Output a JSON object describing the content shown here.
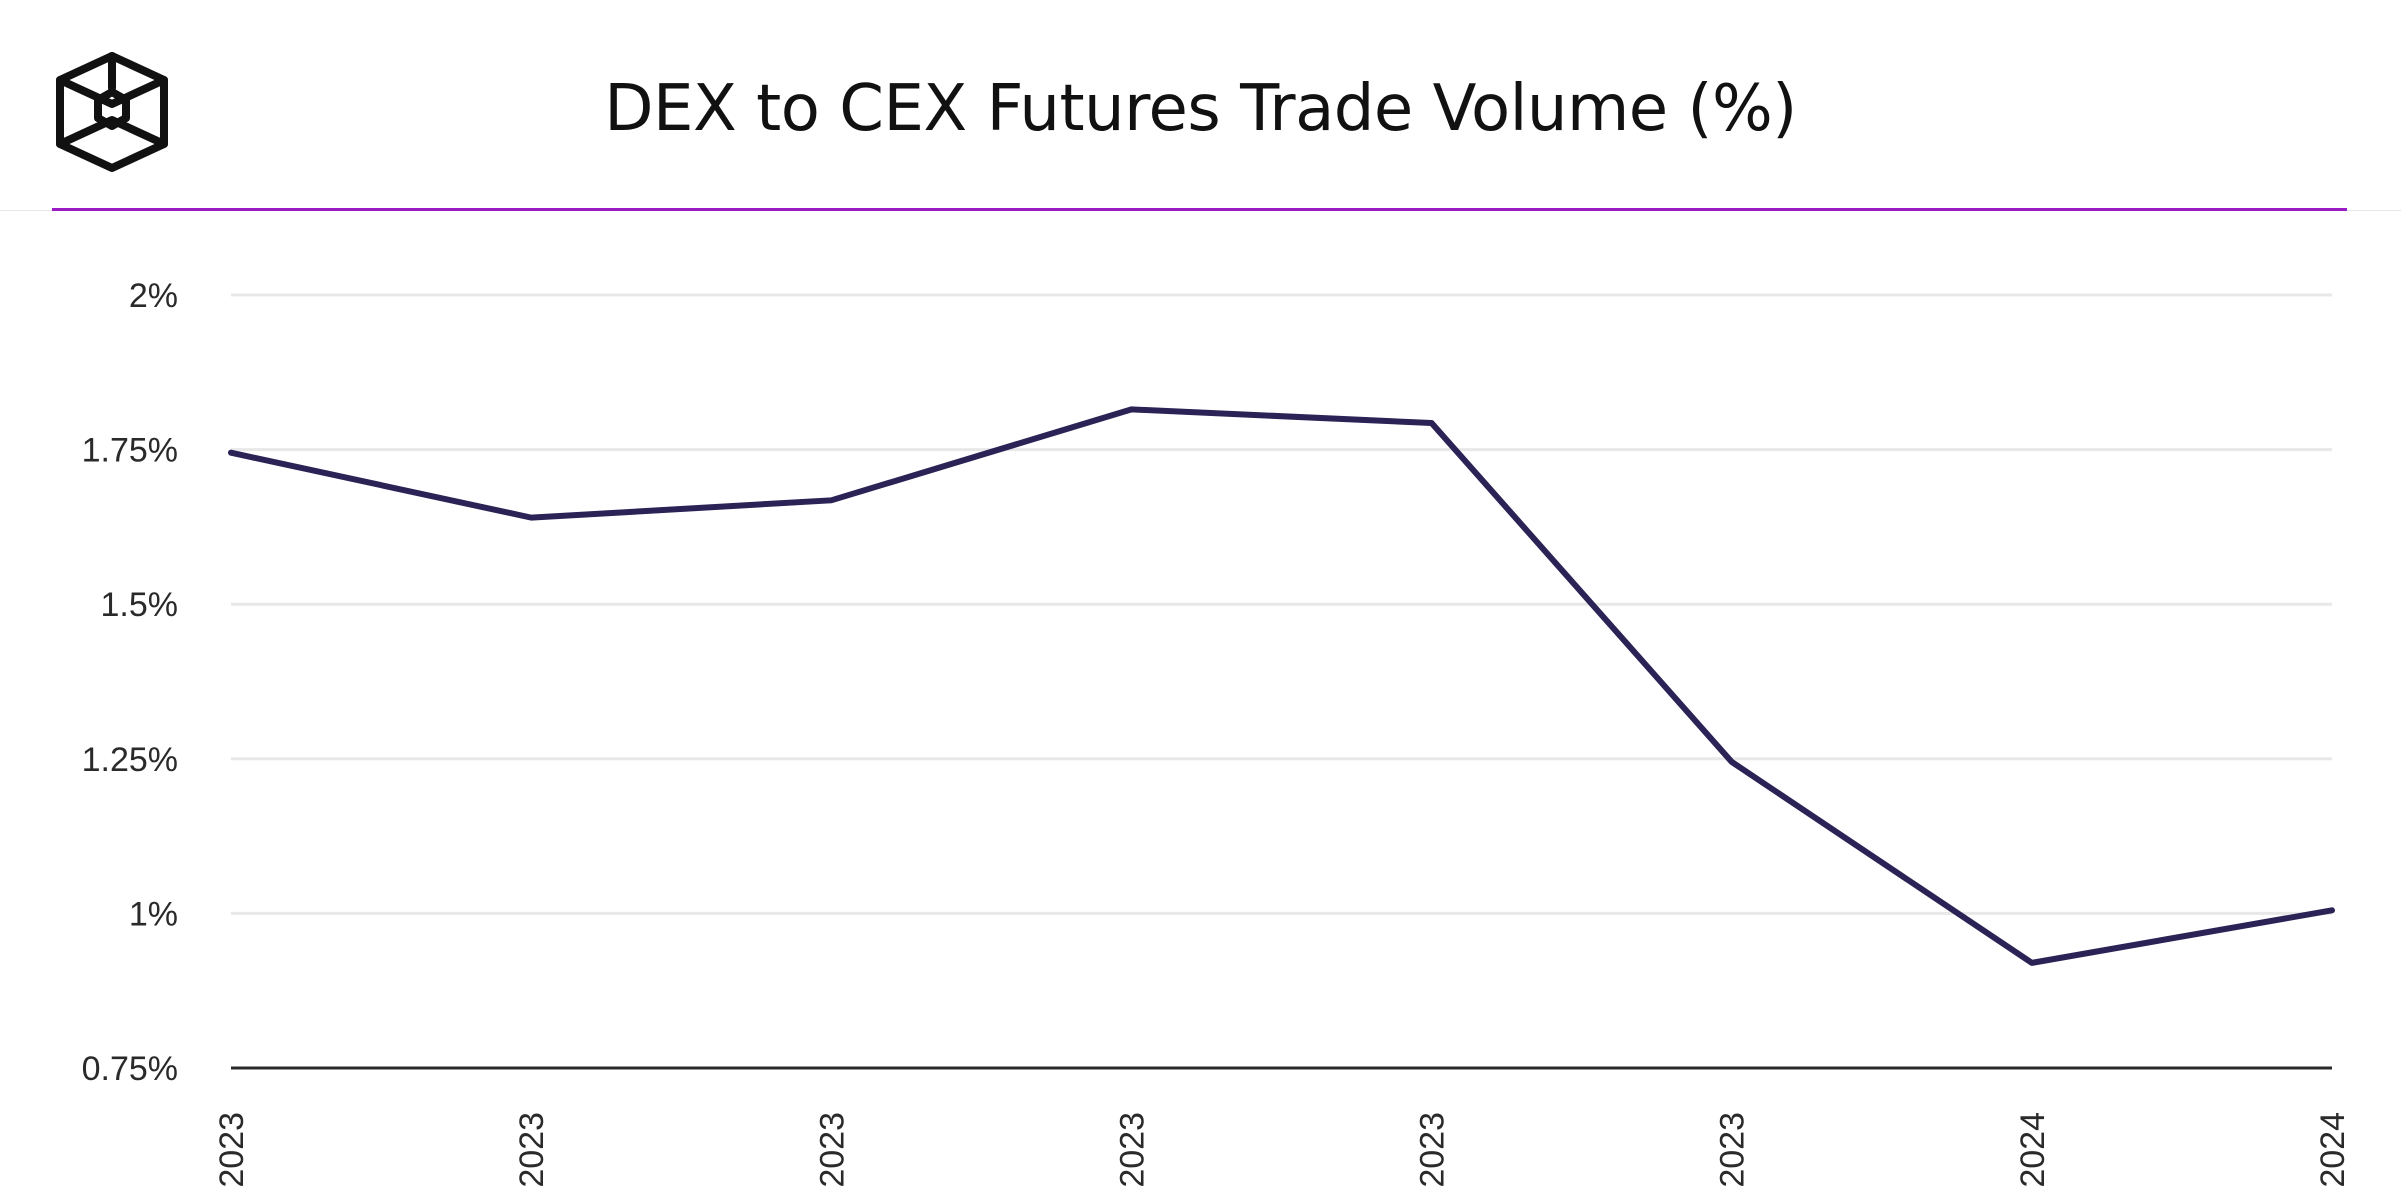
{
  "header": {
    "title": "DEX to CEX Futures Trade Volume (%)",
    "logo_icon": "cube-logo-icon",
    "accent_color": "#9b1bc4"
  },
  "chart_data": {
    "type": "line",
    "title": "DEX to CEX Futures Trade Volume (%)",
    "xlabel": "",
    "ylabel": "",
    "categories": [
      "2023",
      "2023",
      "2023",
      "2023",
      "2023",
      "2023",
      "2024",
      "2024"
    ],
    "series": [
      {
        "values": [
          1.745,
          1.64,
          1.668,
          1.815,
          1.793,
          1.245,
          0.92,
          1.005
        ],
        "color": "#2b2255"
      }
    ],
    "y_ticks": [
      0.75,
      1,
      1.25,
      1.5,
      1.75,
      2
    ],
    "y_tick_labels": [
      "0.75%",
      "1%",
      "1.25%",
      "1.5%",
      "1.75%",
      "2%"
    ],
    "ylim": [
      0.75,
      2
    ],
    "grid": true,
    "legend": "none"
  }
}
